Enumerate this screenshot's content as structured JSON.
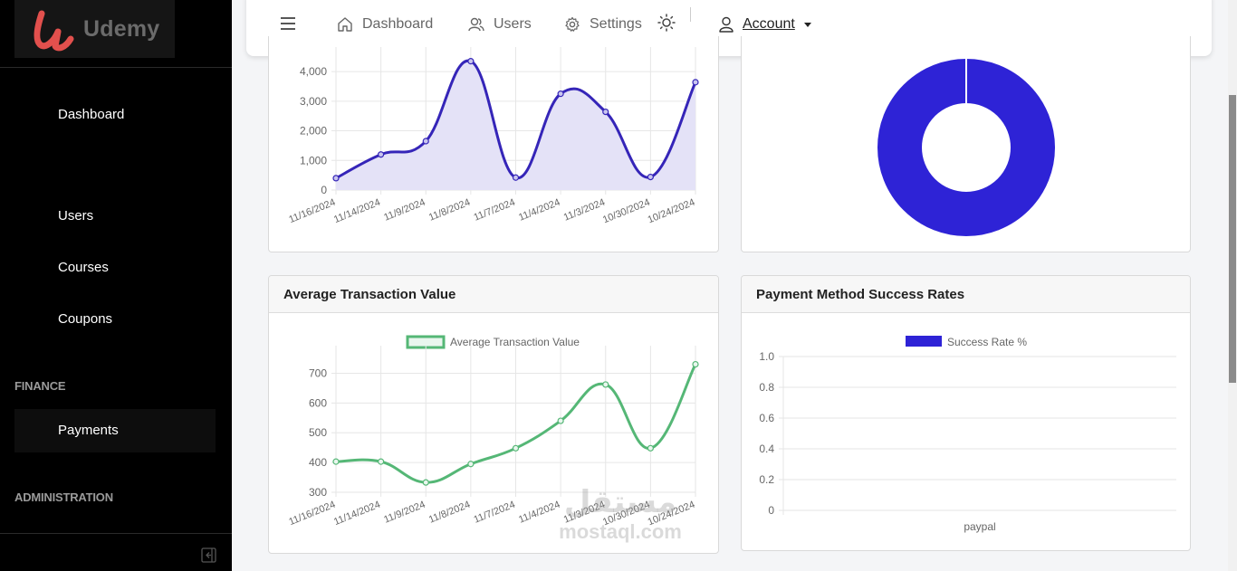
{
  "brand": {
    "name": "Udemy",
    "accent": "#e2504d"
  },
  "sidebar": {
    "items": [
      {
        "label": "Dashboard"
      },
      {
        "label": "Users"
      },
      {
        "label": "Courses"
      },
      {
        "label": "Coupons"
      }
    ],
    "sections": [
      {
        "label": "FINANCE"
      },
      {
        "label": "ADMINISTRATION"
      }
    ],
    "finance_items": [
      {
        "label": "Payments",
        "active": true
      }
    ]
  },
  "topnav": {
    "dashboard": "Dashboard",
    "users": "Users",
    "settings": "Settings",
    "account": "Account"
  },
  "cards": {
    "avg_transaction": {
      "title": "Average Transaction Value"
    },
    "payment_success": {
      "title": "Payment Method Success Rates"
    }
  },
  "watermark": {
    "text": "mostaql.com",
    "arabic": "مستقل"
  },
  "chart_data": [
    {
      "type": "area",
      "categories": [
        "11/16/2024",
        "11/14/2024",
        "11/9/2024",
        "11/8/2024",
        "11/7/2024",
        "11/4/2024",
        "11/3/2024",
        "10/30/2024",
        "10/24/2024"
      ],
      "values": [
        400,
        1200,
        1650,
        4350,
        420,
        3250,
        2640,
        440,
        3640
      ],
      "yticks": [
        "0",
        "1,000",
        "2,000",
        "3,000",
        "4,000"
      ],
      "ylim": [
        0,
        4400
      ],
      "color": "#3525b8",
      "fill": "#e4e2f7"
    },
    {
      "type": "pie",
      "values": [
        100
      ],
      "color": "#2e23d6",
      "donut": true
    },
    {
      "type": "line",
      "categories": [
        "11/16/2024",
        "11/14/2024",
        "11/9/2024",
        "11/8/2024",
        "11/7/2024",
        "11/4/2024",
        "11/3/2024",
        "10/30/2024",
        "10/24/2024"
      ],
      "series": [
        {
          "name": "Average Transaction Value",
          "values": [
            403,
            403,
            333,
            395,
            448,
            540,
            662,
            448,
            730
          ]
        }
      ],
      "yticks": [
        "300",
        "400",
        "500",
        "600",
        "700"
      ],
      "ylim": [
        300,
        750
      ],
      "color": "#55b776",
      "legend": "top"
    },
    {
      "type": "bar",
      "categories": [
        "paypal"
      ],
      "series": [
        {
          "name": "Success Rate %",
          "values": [
            0
          ]
        }
      ],
      "yticks": [
        "0",
        "0.2",
        "0.4",
        "0.6",
        "0.8",
        "1.0"
      ],
      "ylim": [
        0,
        1
      ],
      "color": "#2e23d6",
      "legend": "top"
    }
  ]
}
